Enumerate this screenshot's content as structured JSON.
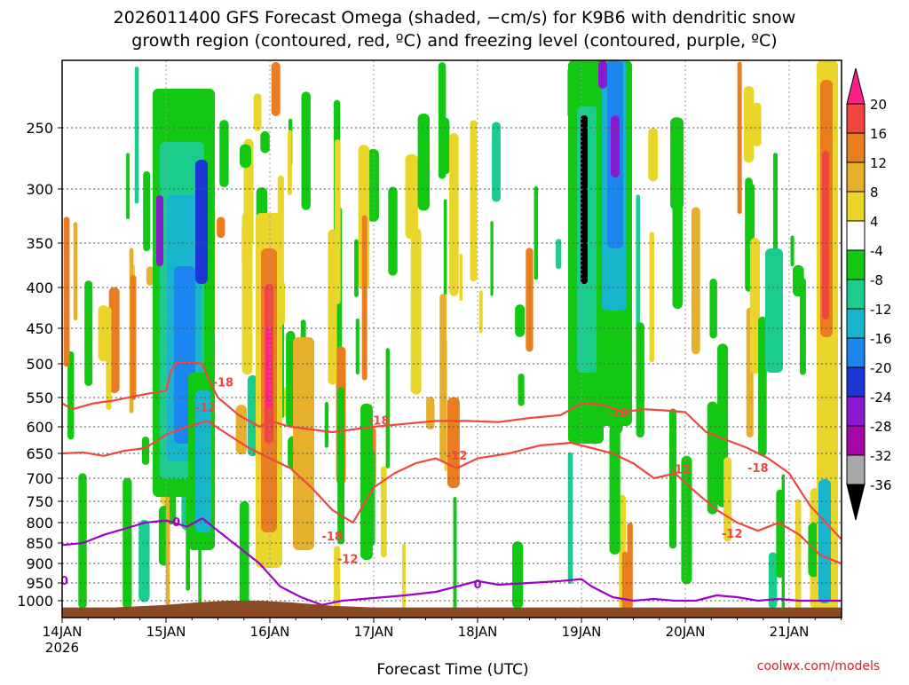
{
  "chart_data": {
    "type": "heatmap",
    "title_line1": "2026011400 GFS Forecast Omega (shaded, −cm/s) for K9B6 with dendritic snow",
    "title_line2": "growth region (contoured, red, ºC) and freezing level (contoured, purple, ºC)",
    "xlabel": "Forecast Time (UTC)",
    "ylabel": "",
    "credit": "coolwx.com/models",
    "x_ticks": [
      "14JAN",
      "15JAN",
      "16JAN",
      "17JAN",
      "18JAN",
      "19JAN",
      "20JAN",
      "21JAN"
    ],
    "x_tick_year": "2026",
    "xlim_days": [
      0,
      7.5
    ],
    "y_ticks": [
      250,
      300,
      350,
      400,
      450,
      500,
      550,
      600,
      650,
      700,
      750,
      800,
      850,
      900,
      950,
      1000
    ],
    "ylim_hpa": [
      200,
      1020
    ],
    "colorbar": {
      "labels": [
        "20",
        "16",
        "12",
        "8",
        "4",
        "-4",
        "-8",
        "-12",
        "-16",
        "-20",
        "-24",
        "-28",
        "-32",
        "-36"
      ],
      "colors": [
        "#ff1f88",
        "#f0463f",
        "#ea7d1f",
        "#e7b02c",
        "#ead62a",
        "#ffffff",
        "#12c812",
        "#1acd8c",
        "#18b6cc",
        "#1c86ee",
        "#1c37d6",
        "#8a1ad0",
        "#a607a8",
        "#a8a8a8",
        "#000000"
      ]
    },
    "contour_labels": {
      "dgz_minus18": "-18",
      "dgz_minus12": "-12",
      "freezing": "0"
    },
    "series": [
      {
        "name": "-18 °C isotherm",
        "color": "#f0463f",
        "x": [
          0,
          0.1,
          0.3,
          0.5,
          0.8,
          1.0,
          1.05,
          1.1,
          1.25,
          1.35,
          1.4,
          1.5,
          1.7,
          1.9,
          2.0,
          2.2,
          2.4,
          2.6,
          2.8,
          3.0,
          3.3,
          3.6,
          3.9,
          4.2,
          4.5,
          4.8,
          5.0,
          5.2,
          5.4,
          5.6,
          5.8,
          6.0,
          6.2,
          6.4,
          6.6,
          6.8,
          7.0,
          7.2,
          7.5
        ],
        "y": [
          560,
          570,
          560,
          555,
          545,
          540,
          510,
          498,
          498,
          500,
          520,
          550,
          580,
          600,
          590,
          600,
          605,
          610,
          605,
          600,
          595,
          590,
          590,
          592,
          585,
          580,
          560,
          562,
          575,
          570,
          572,
          575,
          610,
          625,
          640,
          660,
          690,
          760,
          840
        ]
      },
      {
        "name": "-12 °C isotherm",
        "color": "#f0463f",
        "x": [
          0,
          0.2,
          0.4,
          0.6,
          0.8,
          1.0,
          1.2,
          1.4,
          1.6,
          1.8,
          2.0,
          2.2,
          2.4,
          2.6,
          2.8,
          3.0,
          3.2,
          3.4,
          3.6,
          3.8,
          4.0,
          4.3,
          4.6,
          4.9,
          5.1,
          5.3,
          5.5,
          5.7,
          5.9,
          6.1,
          6.3,
          6.5,
          6.7,
          6.9,
          7.1,
          7.3,
          7.5
        ],
        "y": [
          650,
          648,
          655,
          645,
          640,
          615,
          600,
          590,
          615,
          640,
          660,
          680,
          720,
          770,
          800,
          720,
          690,
          670,
          660,
          680,
          660,
          650,
          635,
          630,
          640,
          650,
          670,
          700,
          690,
          730,
          770,
          800,
          820,
          800,
          830,
          880,
          900
        ]
      },
      {
        "name": "0 °C freezing level",
        "color": "#a000c8",
        "x": [
          0,
          0.2,
          0.4,
          0.6,
          0.8,
          1.0,
          1.2,
          1.35,
          1.5,
          1.7,
          1.9,
          2.1,
          2.3,
          2.5,
          2.7,
          2.9,
          3.1,
          3.3,
          3.6,
          3.8,
          4.0,
          4.2,
          4.5,
          4.8,
          5.0,
          5.1,
          5.3,
          5.5,
          5.7,
          5.9,
          6.1,
          6.3,
          6.5,
          6.7,
          6.9,
          7.1,
          7.3,
          7.5
        ],
        "y": [
          855,
          850,
          830,
          815,
          800,
          795,
          810,
          790,
          820,
          860,
          900,
          960,
          990,
          1005,
          1000,
          995,
          990,
          985,
          975,
          960,
          945,
          955,
          950,
          945,
          940,
          960,
          990,
          1000,
          995,
          1000,
          1000,
          985,
          990,
          1000,
          995,
          1000,
          1000,
          1000
        ]
      }
    ]
  }
}
